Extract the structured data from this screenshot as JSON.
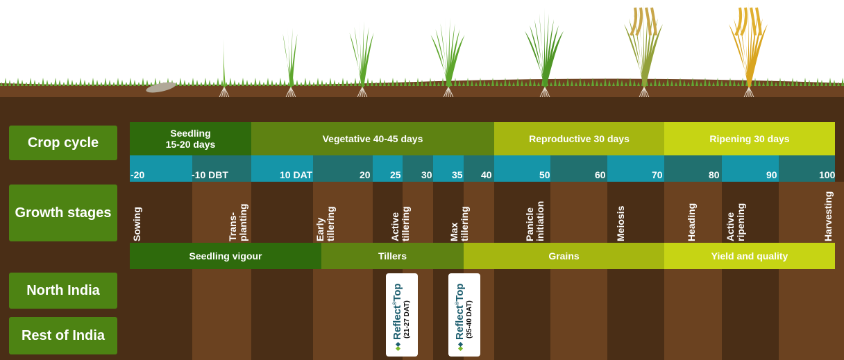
{
  "left_labels": {
    "crop_cycle": "Crop cycle",
    "growth_stages": "Growth stages",
    "north_india": "North India",
    "rest_of_india": "Rest of India"
  },
  "crop_cycle": [
    {
      "label": "Seedling\n15-20 days",
      "color": "#2e6a0c"
    },
    {
      "label": "Vegetative 40-45 days",
      "color": "#5e8212"
    },
    {
      "label": "Reproductive 30 days",
      "color": "#a5b610"
    },
    {
      "label": "Ripening 30 days",
      "color": "#c6d414"
    }
  ],
  "ticks": [
    "-20",
    "-10 DBT",
    "10 DAT",
    "20",
    "25",
    "30",
    "35",
    "40",
    "50",
    "60",
    "70",
    "80",
    "90",
    "100"
  ],
  "growth_stages": [
    "Sowing",
    "Trans-\nplanting",
    "Early\ntillering",
    "Active\ntillering",
    "Max\ntillering",
    "Panicle\ninitiation",
    "Meiosis",
    "Heading",
    "Active\nripening",
    "Harvesting"
  ],
  "outcomes": [
    {
      "label": "Seedling vigour",
      "color": "#2e6a0c"
    },
    {
      "label": "Tillers",
      "color": "#5e8212"
    },
    {
      "label": "Grains",
      "color": "#a5b610"
    },
    {
      "label": "Yield and quality",
      "color": "#c6d414"
    }
  ],
  "products": [
    {
      "brand": "Reflect",
      "suffix": "Top",
      "window": "(21-27 DAT)"
    },
    {
      "brand": "Reflect",
      "suffix": "Top",
      "window": "(35-40 DAT)"
    }
  ],
  "colors": {
    "label_bg": "#4d8313",
    "teal_light": "#1595a8",
    "teal_dark": "#21706f",
    "soil_dark": "#4a2e16",
    "soil_light": "#6b4220",
    "brand_teal": "#1b5d6e",
    "brand_green": "#7ab929"
  }
}
